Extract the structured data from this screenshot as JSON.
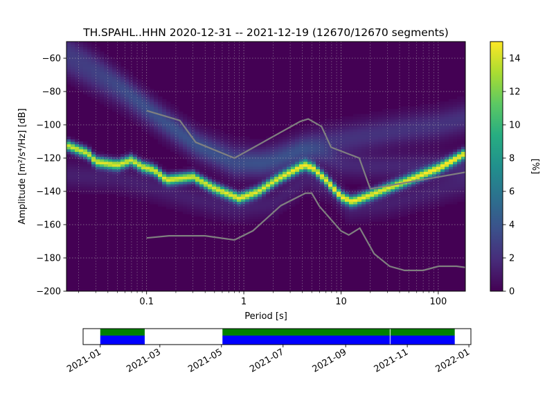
{
  "chart_data": {
    "type": "heatmap",
    "title": "TH.SPAHL..HHN   2020-12-31 -- 2021-12-19  (12670/12670 segments)",
    "xlabel": "Period [s]",
    "ylabel": "Amplitude [m²/s⁴/Hz] [dB]",
    "xscale": "log",
    "xlim": [
      0.015,
      190
    ],
    "ylim": [
      -200,
      -50
    ],
    "x_ticks": [
      0.1,
      1,
      10,
      100
    ],
    "x_tick_labels": [
      "0.1",
      "1",
      "10",
      "100"
    ],
    "y_ticks": [
      -60,
      -80,
      -100,
      -120,
      -140,
      -160,
      -180,
      -200
    ],
    "colorbar": {
      "label": "[%]",
      "range": [
        0,
        15
      ],
      "ticks": [
        0,
        2,
        4,
        6,
        8,
        10,
        12,
        14
      ],
      "colormap": "viridis"
    },
    "grid": true,
    "noise_model_high": {
      "name": "NHNM",
      "color": "#808080",
      "points": [
        [
          0.1,
          -91.5
        ],
        [
          0.22,
          -97.4
        ],
        [
          0.32,
          -110.5
        ],
        [
          0.8,
          -120.0
        ],
        [
          3.8,
          -98.0
        ],
        [
          4.6,
          -96.5
        ],
        [
          6.3,
          -101.0
        ],
        [
          7.9,
          -113.5
        ],
        [
          15.4,
          -120.0
        ],
        [
          20.0,
          -138.5
        ],
        [
          189,
          -128.5
        ]
      ]
    },
    "noise_model_low": {
      "name": "NLNM",
      "color": "#808080",
      "points": [
        [
          0.1,
          -168.0
        ],
        [
          0.17,
          -166.7
        ],
        [
          0.4,
          -166.7
        ],
        [
          0.8,
          -169.2
        ],
        [
          1.24,
          -163.7
        ],
        [
          2.4,
          -148.6
        ],
        [
          4.3,
          -141.1
        ],
        [
          5.0,
          -141.1
        ],
        [
          6.0,
          -149.0
        ],
        [
          10.0,
          -163.8
        ],
        [
          12.0,
          -166.2
        ],
        [
          15.6,
          -162.1
        ],
        [
          21.9,
          -177.5
        ],
        [
          31.6,
          -185.0
        ],
        [
          45.0,
          -187.5
        ],
        [
          70.0,
          -187.5
        ],
        [
          101.0,
          -185.0
        ],
        [
          154.0,
          -185.0
        ],
        [
          189.0,
          -185.7
        ]
      ]
    },
    "ppsd_ridges": [
      {
        "name": "mode",
        "points": [
          [
            0.015,
            -112
          ],
          [
            0.025,
            -117
          ],
          [
            0.03,
            -122
          ],
          [
            0.05,
            -124
          ],
          [
            0.07,
            -121
          ],
          [
            0.09,
            -125
          ],
          [
            0.12,
            -127
          ],
          [
            0.16,
            -133
          ],
          [
            0.3,
            -131
          ],
          [
            0.5,
            -138
          ],
          [
            0.9,
            -144
          ],
          [
            1.4,
            -140
          ],
          [
            2.3,
            -132
          ],
          [
            4.2,
            -124
          ],
          [
            5.2,
            -126
          ],
          [
            7,
            -133
          ],
          [
            10,
            -143
          ],
          [
            13,
            -146
          ],
          [
            20,
            -142
          ],
          [
            50,
            -133
          ],
          [
            100,
            -126
          ],
          [
            189,
            -117
          ]
        ],
        "peak": 14
      },
      {
        "name": "upper-spread",
        "points": [
          [
            0.015,
            -62
          ],
          [
            0.03,
            -72
          ],
          [
            0.06,
            -82
          ],
          [
            0.12,
            -95
          ],
          [
            0.2,
            -104
          ],
          [
            0.35,
            -113
          ],
          [
            0.8,
            -120
          ],
          [
            1.5,
            -122
          ],
          [
            3,
            -117
          ],
          [
            5,
            -112
          ],
          [
            12,
            -108
          ],
          [
            40,
            -103
          ],
          [
            100,
            -100
          ],
          [
            189,
            -96
          ]
        ],
        "peak": 2.2
      },
      {
        "name": "secondary-spread",
        "points": [
          [
            0.015,
            -52
          ],
          [
            0.025,
            -60
          ],
          [
            0.05,
            -73
          ],
          [
            0.1,
            -88
          ],
          [
            0.3,
            -110
          ],
          [
            0.8,
            -125
          ],
          [
            2,
            -123
          ],
          [
            4,
            -115
          ],
          [
            6,
            -117
          ],
          [
            10,
            -124
          ],
          [
            20,
            -125
          ],
          [
            189,
            -124
          ]
        ],
        "peak": 1.6
      },
      {
        "name": "lower-spread",
        "points": [
          [
            0.015,
            -130
          ],
          [
            0.05,
            -132
          ],
          [
            0.1,
            -136
          ],
          [
            0.3,
            -144
          ],
          [
            0.8,
            -150
          ],
          [
            2,
            -147
          ],
          [
            4.5,
            -132
          ],
          [
            8,
            -138
          ],
          [
            12,
            -150
          ],
          [
            30,
            -147
          ],
          [
            189,
            -135
          ]
        ],
        "peak": 1.3
      }
    ]
  },
  "timeline": {
    "ticks": [
      "2021-01",
      "2021-03",
      "2021-05",
      "2021-07",
      "2021-09",
      "2021-11",
      "2022-01"
    ],
    "range": [
      "2020-12-15",
      "2022-01-03"
    ],
    "bands": [
      {
        "start": "2021-01-01",
        "end": "2021-02-14"
      },
      {
        "start": "2021-05-02",
        "end": "2021-12-18"
      }
    ],
    "gaps": [
      "2021-10-15"
    ],
    "upper_color": "#008000",
    "lower_color": "#0000ff"
  }
}
